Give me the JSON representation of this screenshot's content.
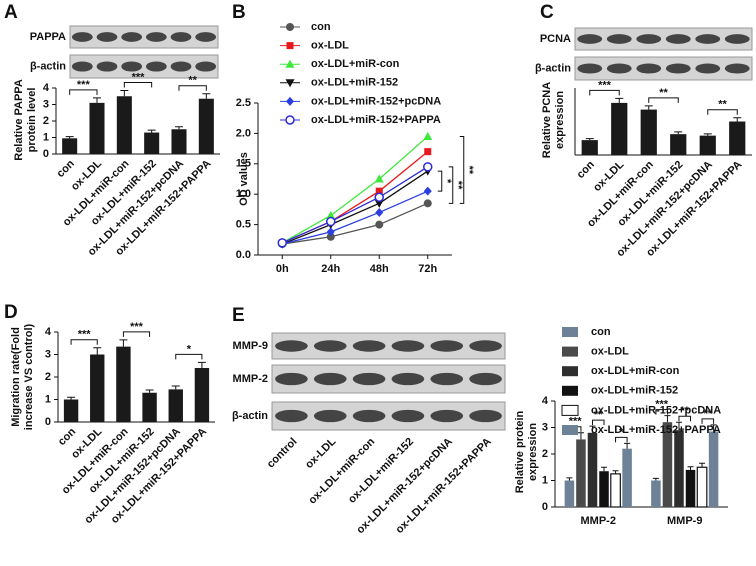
{
  "chart_data": [
    {
      "type": "bar",
      "panel": "A",
      "blot_labels": [
        "PAPPA",
        "β-actin"
      ],
      "ylabel": [
        "Relative PAPPA",
        "protein level"
      ],
      "categories": [
        "con",
        "ox-LDL",
        "ox-LDL+miR-con",
        "ox-LDL+miR-152",
        "ox-LDL+miR-152+pcDNA",
        "ox-LDL+miR-152+PAPPA"
      ],
      "values": [
        0.95,
        3.1,
        3.5,
        1.3,
        1.5,
        3.35
      ],
      "errors": [
        0.1,
        0.3,
        0.35,
        0.15,
        0.15,
        0.3
      ],
      "color": "#1a1a1a",
      "ylim": [
        0,
        4
      ],
      "yticks": [
        0,
        1,
        2,
        3,
        4
      ],
      "significance": [
        "***",
        "***",
        "**"
      ]
    },
    {
      "type": "line",
      "panel": "B",
      "ylabel": [
        "OD values"
      ],
      "categories": [
        "0h",
        "24h",
        "48h",
        "72h"
      ],
      "series": [
        {
          "name": "con",
          "color": "#555555",
          "marker": "circle",
          "values": [
            0.18,
            0.3,
            0.5,
            0.85
          ]
        },
        {
          "name": "ox-LDL",
          "color": "#e8191c",
          "marker": "square",
          "values": [
            0.2,
            0.55,
            1.05,
            1.7
          ]
        },
        {
          "name": "ox-LDL+miR-con",
          "color": "#3ee83a",
          "marker": "triangle",
          "values": [
            0.2,
            0.65,
            1.25,
            1.95
          ]
        },
        {
          "name": "ox-LDL+miR-152",
          "color": "#111111",
          "marker": "down-triangle",
          "values": [
            0.18,
            0.5,
            0.85,
            1.38
          ]
        },
        {
          "name": "ox-LDL+miR-152+pcDNA",
          "color": "#2b3fe0",
          "marker": "diamond",
          "values": [
            0.18,
            0.38,
            0.7,
            1.05
          ]
        },
        {
          "name": "ox-LDL+miR-152+PAPPA",
          "color": "#2b2bd8",
          "marker": "open-circle",
          "values": [
            0.2,
            0.55,
            0.95,
            1.45
          ]
        }
      ],
      "ylim": [
        0,
        2.5
      ],
      "yticks": [
        {
          "value": 0,
          "label": "0.0"
        },
        0.5,
        {
          "value": 1,
          "label": "1.0"
        },
        1.5,
        {
          "value": 2,
          "label": "2.0"
        },
        2.5
      ],
      "significance": [
        "*",
        "**",
        "**"
      ]
    },
    {
      "type": "bar",
      "panel": "C",
      "blot_labels": [
        "PCNA",
        "β-actin"
      ],
      "ylabel": [
        "Relative PCNA",
        "expression"
      ],
      "categories": [
        "con",
        "ox-LDL",
        "ox-LDL+miR-con",
        "ox-LDL+miR-152",
        "ox-LDL+miR-152+pcDNA",
        "ox-LDL+miR-152+PAPPA"
      ],
      "values": [
        1.0,
        3.5,
        3.05,
        1.4,
        1.3,
        2.25
      ],
      "errors": [
        0.1,
        0.3,
        0.25,
        0.15,
        0.12,
        0.25
      ],
      "color": "#1a1a1a",
      "ylim": [
        0,
        4.5
      ],
      "significance": [
        "***",
        "**",
        "**"
      ]
    },
    {
      "type": "bar",
      "panel": "D",
      "ylabel": [
        "Migration rate(Fold",
        "increase VS control)"
      ],
      "categories": [
        "con",
        "ox-LDL",
        "ox-LDL+miR-con",
        "ox-LDL+miR-152",
        "ox-LDL+miR-152+pcDNA",
        "ox-LDL+miR-152+PAPPA"
      ],
      "values": [
        1.0,
        3.0,
        3.35,
        1.3,
        1.45,
        2.4
      ],
      "errors": [
        0.1,
        0.3,
        0.3,
        0.12,
        0.15,
        0.25
      ],
      "color": "#1a1a1a",
      "ylim": [
        0,
        4
      ],
      "yticks": [
        0,
        1,
        2,
        3,
        4
      ],
      "significance": [
        "***",
        "***",
        "*"
      ]
    },
    {
      "type": "grouped-bar",
      "panel": "E",
      "blot_labels": [
        "MMP-9",
        "MMP-2",
        "β-actin"
      ],
      "lanes": [
        "control",
        "ox-LDL",
        "ox-LDL+miR-con",
        "ox-LDL+miR-152",
        "ox-LDL+miR-152+pcDNA",
        "ox-LDL+miR-152+PAPPA"
      ],
      "ylabel": [
        "Relative protein",
        "expression"
      ],
      "categories": [
        "MMP-2",
        "MMP-9"
      ],
      "series": [
        {
          "name": "con",
          "color": "#6d8296",
          "values": [
            1.0,
            1.0
          ],
          "errors": [
            0.1,
            0.08
          ]
        },
        {
          "name": "ox-LDL",
          "color": "#4a4a4a",
          "values": [
            2.55,
            3.2
          ],
          "errors": [
            0.25,
            0.25
          ]
        },
        {
          "name": "ox-LDL+miR-con",
          "color": "#2e2e2e",
          "values": [
            2.8,
            2.9
          ],
          "errors": [
            0.25,
            0.3
          ]
        },
        {
          "name": "ox-LDL+miR-152",
          "color": "#111111",
          "values": [
            1.35,
            1.4
          ],
          "errors": [
            0.15,
            0.12
          ]
        },
        {
          "name": "ox-LDL+miR-152+pcDNA",
          "color": "#ffffff",
          "values": [
            1.25,
            1.5
          ],
          "errors": [
            0.12,
            0.15
          ]
        },
        {
          "name": "ox-LDL+miR-152+PAPPA",
          "color": "#6d8296",
          "values": [
            2.2,
            2.85
          ],
          "errors": [
            0.2,
            0.25
          ]
        }
      ],
      "ylim": [
        0,
        4
      ],
      "yticks": [
        0,
        1,
        2,
        3,
        4
      ],
      "significance": [
        [
          "***",
          "**",
          "*"
        ],
        [
          "***",
          "**",
          "**"
        ]
      ]
    }
  ]
}
